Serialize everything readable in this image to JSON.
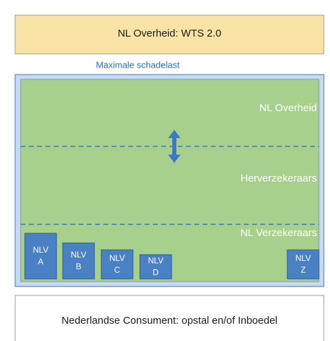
{
  "header": {
    "title": "NL Overheid: WTS 2.0"
  },
  "max_label": "Maximale schadelast",
  "layers": [
    "NL Overheid",
    "Herverzekeraars",
    "NL Verzekeraars"
  ],
  "insurers": [
    {
      "line1": "NLV",
      "line2": "A"
    },
    {
      "line1": "NLV",
      "line2": "B"
    },
    {
      "line1": "NLV",
      "line2": "C"
    },
    {
      "line1": "NLV",
      "line2": "D"
    },
    {
      "line1": "NLV",
      "line2": "Z"
    }
  ],
  "footer": {
    "title": "Nederlandse Consument: opstal en/of Inboedel"
  }
}
